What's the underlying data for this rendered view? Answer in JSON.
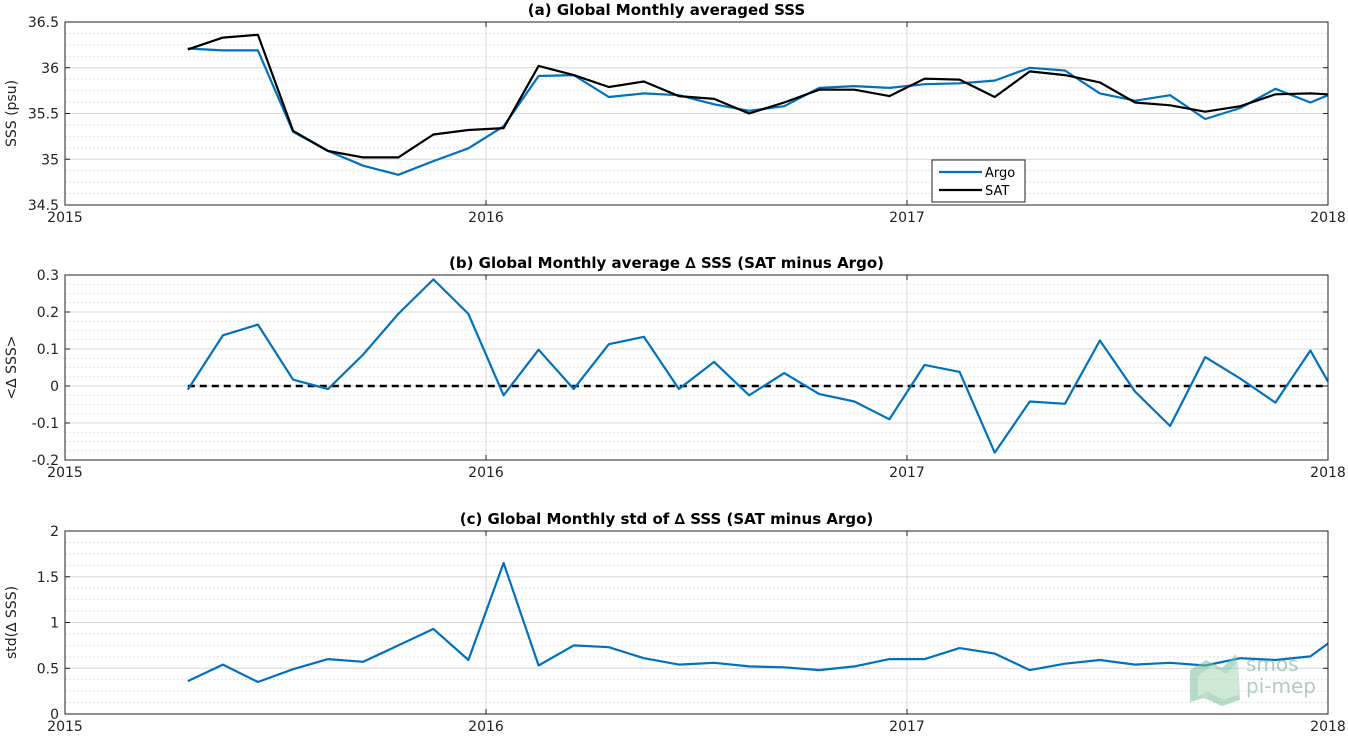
{
  "chart_data": [
    {
      "type": "line",
      "title": "(a) Global Monthly averaged SSS",
      "ylabel": "SSS (psu)",
      "xlabel": "",
      "xlim": [
        2015,
        2018
      ],
      "ylim": [
        34.5,
        36.5
      ],
      "xticks": [
        2015,
        2016,
        2017,
        2018
      ],
      "xtick_labels": [
        "2015",
        "2016",
        "2017",
        "2018"
      ],
      "yticks": [
        34.5,
        35,
        35.5,
        36,
        36.5
      ],
      "ytick_labels": [
        "34.5",
        "35",
        "35.5",
        "36",
        "36.5"
      ],
      "grid": true,
      "legend": "bottom-center",
      "x": [
        2015.2917,
        2015.375,
        2015.4583,
        2015.5417,
        2015.625,
        2015.7083,
        2015.7917,
        2015.875,
        2015.9583,
        2016.0417,
        2016.125,
        2016.2083,
        2016.2917,
        2016.375,
        2016.4583,
        2016.5417,
        2016.625,
        2016.7083,
        2016.7917,
        2016.875,
        2016.9583,
        2017.0417,
        2017.125,
        2017.2083,
        2017.2917,
        2017.375,
        2017.4583,
        2017.5417,
        2017.625,
        2017.7083,
        2017.7917,
        2017.875,
        2017.9583,
        2018.0
      ],
      "series": [
        {
          "name": "Argo",
          "color": "#0072bd",
          "values": [
            36.21,
            36.19,
            36.19,
            35.3,
            35.09,
            34.93,
            34.83,
            34.98,
            35.12,
            35.36,
            35.91,
            35.92,
            35.68,
            35.72,
            35.7,
            35.6,
            35.53,
            35.58,
            35.78,
            35.8,
            35.78,
            35.82,
            35.83,
            35.86,
            36.0,
            35.97,
            35.72,
            35.64,
            35.7,
            35.44,
            35.56,
            35.77,
            35.62,
            35.7
          ]
        },
        {
          "name": "SAT",
          "color": "#000000",
          "values": [
            36.2,
            36.33,
            36.36,
            35.31,
            35.09,
            35.02,
            35.02,
            35.27,
            35.32,
            35.34,
            36.02,
            35.92,
            35.79,
            35.85,
            35.69,
            35.66,
            35.5,
            35.62,
            35.76,
            35.76,
            35.69,
            35.88,
            35.87,
            35.68,
            35.96,
            35.92,
            35.84,
            35.62,
            35.59,
            35.52,
            35.58,
            35.71,
            35.72,
            35.71
          ]
        }
      ]
    },
    {
      "type": "line",
      "title": "(b) Global Monthly average ∆ SSS (SAT minus Argo)",
      "ylabel": "<∆ SSS>",
      "xlabel": "",
      "xlim": [
        2015,
        2018
      ],
      "ylim": [
        -0.2,
        0.3
      ],
      "xticks": [
        2015,
        2016,
        2017,
        2018
      ],
      "xtick_labels": [
        "2015",
        "2016",
        "2017",
        "2018"
      ],
      "yticks": [
        -0.2,
        -0.1,
        0,
        0.1,
        0.2,
        0.3
      ],
      "ytick_labels": [
        "-0.2",
        "-0.1",
        "0",
        "0.1",
        "0.2",
        "0.3"
      ],
      "grid": true,
      "reference_line": {
        "y": 0,
        "color": "#000000",
        "style": "dashed"
      },
      "x": [
        2015.2917,
        2015.375,
        2015.4583,
        2015.5417,
        2015.625,
        2015.7083,
        2015.7917,
        2015.875,
        2015.9583,
        2016.0417,
        2016.125,
        2016.2083,
        2016.2917,
        2016.375,
        2016.4583,
        2016.5417,
        2016.625,
        2016.7083,
        2016.7917,
        2016.875,
        2016.9583,
        2017.0417,
        2017.125,
        2017.2083,
        2017.2917,
        2017.375,
        2017.4583,
        2017.5417,
        2017.625,
        2017.7083,
        2017.7917,
        2017.875,
        2017.9583,
        2018.0
      ],
      "series": [
        {
          "color": "#0072bd",
          "values": [
            -0.01,
            0.137,
            0.166,
            0.017,
            -0.008,
            0.085,
            0.195,
            0.288,
            0.195,
            -0.025,
            0.098,
            -0.008,
            0.113,
            0.133,
            -0.008,
            0.065,
            -0.025,
            0.035,
            -0.022,
            -0.042,
            -0.09,
            0.057,
            0.038,
            -0.18,
            -0.042,
            -0.048,
            0.123,
            -0.015,
            -0.108,
            0.078,
            0.02,
            -0.045,
            0.096,
            0.012
          ]
        }
      ]
    },
    {
      "type": "line",
      "title": "(c) Global Monthly std of ∆ SSS (SAT minus Argo)",
      "ylabel": "std(∆ SSS)",
      "xlabel": "",
      "xlim": [
        2015,
        2018
      ],
      "ylim": [
        0,
        2
      ],
      "xticks": [
        2015,
        2016,
        2017,
        2018
      ],
      "xtick_labels": [
        "2015",
        "2016",
        "2017",
        "2018"
      ],
      "yticks": [
        0,
        0.5,
        1,
        1.5,
        2
      ],
      "ytick_labels": [
        "0",
        "0.5",
        "1",
        "1.5",
        "2"
      ],
      "grid": true,
      "x": [
        2015.2917,
        2015.375,
        2015.4583,
        2015.5417,
        2015.625,
        2015.7083,
        2015.7917,
        2015.875,
        2015.9583,
        2016.0417,
        2016.125,
        2016.2083,
        2016.2917,
        2016.375,
        2016.4583,
        2016.5417,
        2016.625,
        2016.7083,
        2016.7917,
        2016.875,
        2016.9583,
        2017.0417,
        2017.125,
        2017.2083,
        2017.2917,
        2017.375,
        2017.4583,
        2017.5417,
        2017.625,
        2017.7083,
        2017.7917,
        2017.875,
        2017.9583,
        2018.0
      ],
      "series": [
        {
          "color": "#0072bd",
          "values": [
            0.36,
            0.54,
            0.35,
            0.49,
            0.6,
            0.57,
            0.75,
            0.93,
            0.59,
            1.65,
            0.53,
            0.75,
            0.73,
            0.61,
            0.54,
            0.56,
            0.52,
            0.51,
            0.48,
            0.52,
            0.6,
            0.6,
            0.72,
            0.66,
            0.48,
            0.55,
            0.59,
            0.54,
            0.56,
            0.53,
            0.61,
            0.59,
            0.63,
            0.77
          ]
        }
      ]
    }
  ],
  "watermark": {
    "line1": "smos",
    "line2": "pi-mep"
  }
}
